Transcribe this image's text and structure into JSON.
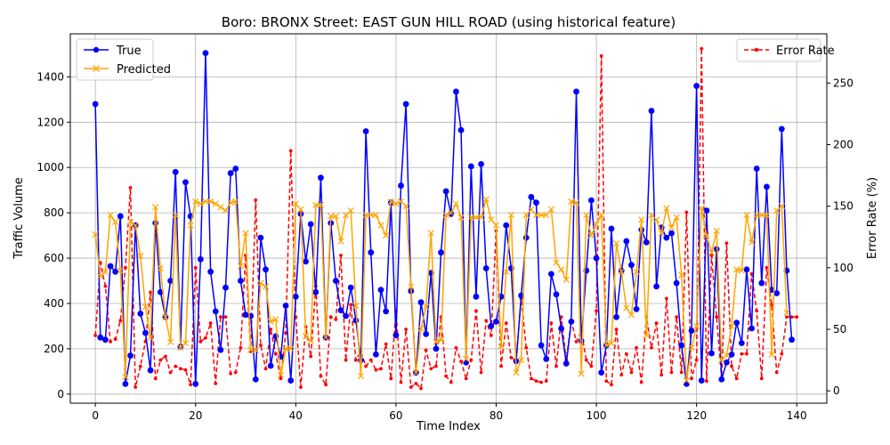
{
  "chart_data": {
    "type": "line",
    "title": "Boro: BRONX Street: EAST GUN HILL ROAD (using historical feature)",
    "xlabel": "Time Index",
    "ylabel": "Traffic Volume",
    "y2label": "Error Rate (%)",
    "xlim": [
      -5,
      146
    ],
    "ylim": [
      -40,
      1590
    ],
    "y2lim": [
      -10,
      290
    ],
    "xticks": [
      0,
      20,
      40,
      60,
      80,
      100,
      120,
      140
    ],
    "yticks": [
      0,
      200,
      400,
      600,
      800,
      1000,
      1200,
      1400
    ],
    "y2ticks": [
      0,
      50,
      100,
      150,
      200,
      250
    ],
    "grid": true,
    "legend_left": {
      "placement": "upper-left",
      "entries": [
        "True",
        "Predicted"
      ]
    },
    "legend_right": {
      "placement": "upper-right",
      "entries": [
        "Error Rate"
      ]
    },
    "series": [
      {
        "name": "True",
        "axis": "left",
        "color": "#0000ff",
        "marker": "o",
        "values": [
          1280,
          250,
          240,
          565,
          540,
          785,
          45,
          170,
          745,
          355,
          270,
          105,
          755,
          450,
          340,
          500,
          980,
          210,
          935,
          785,
          45,
          595,
          1505,
          540,
          365,
          195,
          470,
          975,
          995,
          500,
          350,
          345,
          65,
          690,
          550,
          125,
          255,
          165,
          390,
          60,
          430,
          795,
          585,
          750,
          450,
          955,
          250,
          755,
          500,
          370,
          345,
          470,
          325,
          150,
          1160,
          625,
          175,
          460,
          365,
          845,
          260,
          920,
          1280,
          455,
          95,
          405,
          265,
          535,
          200,
          625,
          895,
          795,
          1335,
          1165,
          140,
          1005,
          430,
          1015,
          555,
          300,
          320,
          430,
          745,
          555,
          145,
          435,
          690,
          870,
          845,
          215,
          155,
          530,
          440,
          290,
          135,
          320,
          1335,
          235,
          545,
          855,
          600,
          95,
          215,
          730,
          340,
          545,
          675,
          570,
          375,
          725,
          670,
          1250,
          475,
          735,
          690,
          710,
          490,
          215,
          45,
          280,
          1360,
          60,
          810,
          180,
          640,
          65,
          140,
          175,
          315,
          225,
          550,
          290,
          995,
          490,
          915,
          460,
          445,
          1170,
          545,
          240
        ]
      },
      {
        "name": "Predicted",
        "axis": "left",
        "color": "#ffa500",
        "marker": "x",
        "values": [
          705,
          520,
          540,
          790,
          760,
          545,
          75,
          760,
          745,
          610,
          385,
          250,
          825,
          555,
          340,
          230,
          790,
          205,
          225,
          745,
          850,
          840,
          850,
          850,
          840,
          825,
          810,
          845,
          850,
          565,
          710,
          195,
          195,
          490,
          475,
          320,
          330,
          85,
          200,
          200,
          840,
          815,
          255,
          235,
          835,
          835,
          250,
          785,
          785,
          675,
          790,
          810,
          390,
          80,
          790,
          790,
          790,
          745,
          700,
          850,
          840,
          850,
          830,
          475,
          95,
          290,
          385,
          710,
          230,
          240,
          790,
          800,
          840,
          780,
          155,
          780,
          780,
          780,
          860,
          770,
          745,
          210,
          540,
          790,
          95,
          150,
          790,
          815,
          790,
          790,
          790,
          815,
          580,
          550,
          505,
          850,
          845,
          90,
          790,
          700,
          750,
          790,
          215,
          225,
          665,
          540,
          380,
          350,
          540,
          770,
          260,
          790,
          770,
          710,
          820,
          735,
          780,
          525,
          60,
          205,
          300,
          820,
          700,
          625,
          720,
          150,
          170,
          300,
          550,
          545,
          790,
          670,
          790,
          790,
          790,
          175,
          810,
          830,
          360
        ]
      },
      {
        "name": "Error Rate",
        "axis": "right",
        "color": "#ff0000",
        "marker": ".",
        "values": [
          45,
          104,
          85,
          40,
          42,
          57,
          100,
          165,
          3,
          20,
          40,
          80,
          10,
          25,
          28,
          15,
          20,
          18,
          17,
          5,
          100,
          40,
          43,
          55,
          6,
          60,
          60,
          14,
          15,
          35,
          110,
          32,
          155,
          37,
          18,
          50,
          30,
          10,
          47,
          195,
          60,
          3,
          52,
          28,
          85,
          12,
          5,
          60,
          58,
          110,
          25,
          70,
          25,
          32,
          20,
          25,
          17,
          18,
          38,
          10,
          65,
          7,
          50,
          3,
          6,
          2,
          33,
          18,
          20,
          60,
          12,
          7,
          35,
          24,
          10,
          25,
          65,
          15,
          57,
          45,
          130,
          20,
          55,
          27,
          25,
          75,
          35,
          10,
          8,
          7,
          8,
          55,
          20,
          60,
          25,
          57,
          40,
          48,
          25,
          20,
          65,
          272,
          8,
          5,
          50,
          13,
          30,
          15,
          35,
          7,
          60,
          35,
          55,
          13,
          75,
          15,
          60,
          15,
          145,
          10,
          25,
          278,
          8,
          110,
          60,
          10,
          120,
          20,
          10,
          30,
          30,
          95,
          65,
          10,
          100,
          70,
          15,
          30,
          60,
          60,
          60
        ]
      }
    ]
  }
}
